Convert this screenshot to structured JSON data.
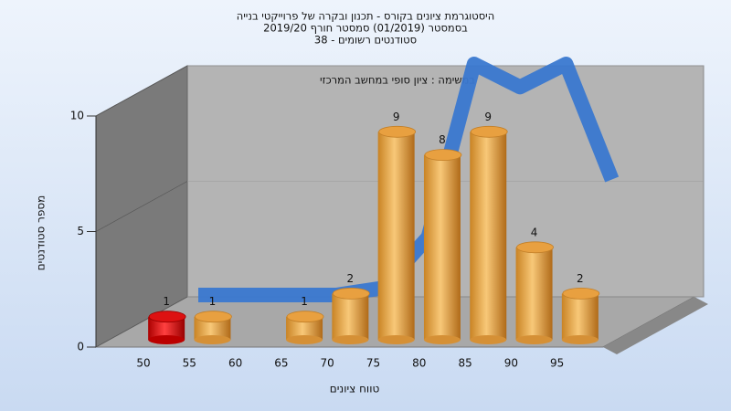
{
  "chart_data": {
    "type": "bar",
    "title": [
      "היסטוגרמת ציונים בקורס - תכנון ובקרה של פרוייקטי בנייה",
      "בסמסטר  (01/2019)  סמסטר חורף 2019/20",
      "סטודנטים רשומים - 38"
    ],
    "subtitle": "במשימה : ציון סופי במחשב המרכזי",
    "x_label": "טווח ציונים",
    "y_label": "מספר סטודנטים",
    "categories": [
      "50",
      "55",
      "60",
      "65",
      "70",
      "75",
      "80",
      "85",
      "90",
      "95"
    ],
    "values": [
      1,
      1,
      0,
      1,
      2,
      9,
      8,
      9,
      4,
      2
    ],
    "colors": [
      "#dd1111",
      "#e8a040",
      "#e8a040",
      "#e8a040",
      "#e8a040",
      "#e8a040",
      "#e8a040",
      "#e8a040",
      "#e8a040",
      "#e8a040"
    ],
    "curve": {
      "values": [
        0,
        0,
        0,
        0,
        0.3,
        2.5,
        10,
        9,
        10,
        5
      ],
      "color": "#3a78d0"
    },
    "ylim": [
      0,
      10
    ],
    "yticks": [
      0,
      5,
      10
    ],
    "grid": true
  }
}
